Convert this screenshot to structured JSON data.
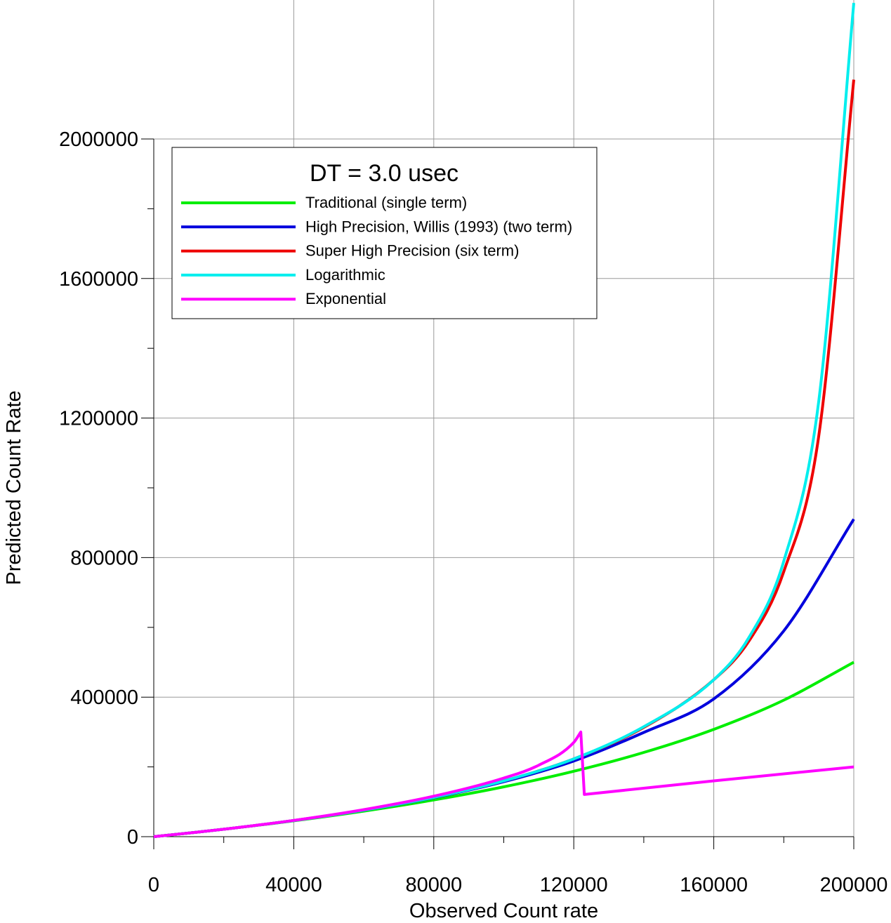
{
  "chart_data": {
    "type": "line",
    "xlabel": "Observed Count rate",
    "ylabel": "Predicted Count Rate",
    "xlim": [
      0,
      200000
    ],
    "ylim": [
      0,
      2000000
    ],
    "grid": true,
    "legend_placement": "top-left",
    "legend_title": "DT = 3.0 usec",
    "x_ticks": [
      "0",
      "40000",
      "80000",
      "120000",
      "160000",
      "200000"
    ],
    "y_ticks": [
      "0",
      "400000",
      "800000",
      "1200000",
      "1600000",
      "2000000"
    ],
    "series": [
      {
        "name": "Traditional (single term)",
        "color": "#00ee00",
        "x": [
          0,
          20000,
          40000,
          60000,
          80000,
          100000,
          120000,
          140000,
          160000,
          180000,
          200000
        ],
        "y": [
          0,
          21277,
          45455,
          73171,
          105263,
          142857,
          187500,
          241379,
          307692,
          391304,
          500000
        ]
      },
      {
        "name": "High Precision, Willis (1993) (two term)",
        "color": "#0000dd",
        "x": [
          0,
          20000,
          40000,
          60000,
          80000,
          100000,
          120000,
          140000,
          160000,
          180000,
          200000
        ],
        "y": [
          0,
          21374,
          46220,
          75758,
          111857,
          157480,
          216998,
          298851,
          395000,
          590000,
          910000
        ]
      },
      {
        "name": "Super High Precision (six term)",
        "color": "#ee0000",
        "x": [
          0,
          20000,
          40000,
          60000,
          80000,
          100000,
          120000,
          140000,
          160000,
          170000,
          180000,
          190000,
          200000
        ],
        "y": [
          0,
          21381,
          46293,
          76036,
          112709,
          159859,
          222986,
          313000,
          450000,
          560000,
          760000,
          1150000,
          2170000
        ]
      },
      {
        "name": "Logarithmic",
        "color": "#00eeee",
        "x": [
          0,
          20000,
          40000,
          60000,
          80000,
          100000,
          120000,
          140000,
          160000,
          170000,
          180000,
          190000,
          200000
        ],
        "y": [
          0,
          21381,
          46293,
          76036,
          112709,
          159859,
          223000,
          315000,
          450000,
          570000,
          790000,
          1250000,
          2390000
        ]
      },
      {
        "name": "Exponential",
        "color": "#ff00ff",
        "x": [
          0,
          20000,
          40000,
          60000,
          80000,
          100000,
          110000,
          120000,
          122000,
          123000,
          160000,
          200000
        ],
        "y": [
          0,
          21400,
          46600,
          77500,
          116000,
          168000,
          205000,
          270000,
          300000,
          121000,
          160000,
          200000
        ]
      }
    ]
  }
}
